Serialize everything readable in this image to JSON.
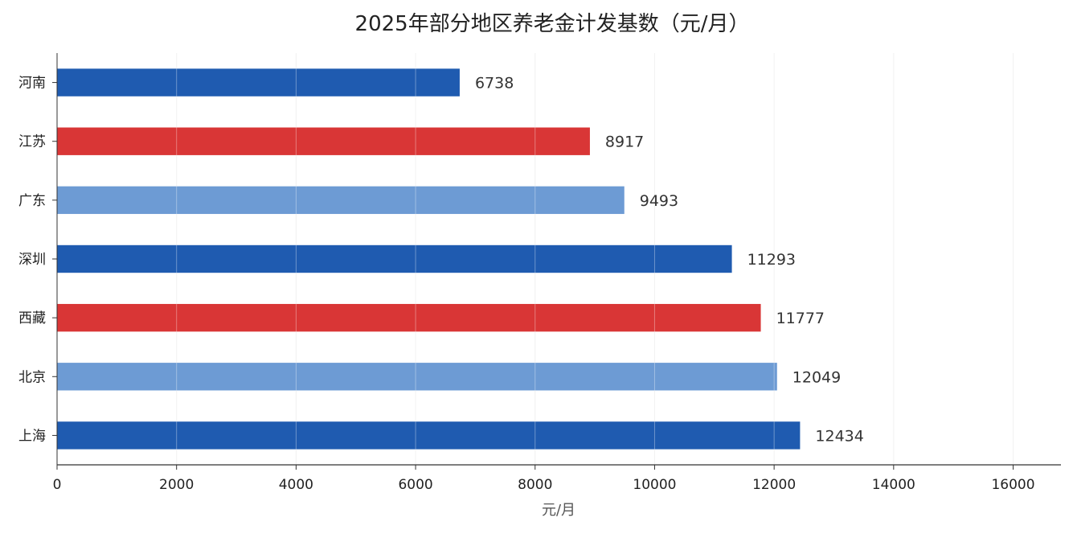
{
  "chart_data": {
    "type": "bar",
    "orientation": "horizontal",
    "title": "2025年部分地区养老金计发基数（元/月）",
    "xlabel": "元/月",
    "ylabel": "",
    "xlim": [
      0,
      16800
    ],
    "x_ticks": [
      0,
      2000,
      4000,
      6000,
      8000,
      10000,
      12000,
      14000,
      16000
    ],
    "grid": "vertical",
    "legend": "none",
    "categories": [
      "河南",
      "江苏",
      "广东",
      "深圳",
      "西藏",
      "北京",
      "上海"
    ],
    "values": [
      6738,
      8917,
      9493,
      11293,
      11777,
      12049,
      12434
    ],
    "bar_colors": [
      "#1f5bb0",
      "#d93636",
      "#6d9bd4",
      "#1f5bb0",
      "#d93636",
      "#6d9bd4",
      "#1f5bb0"
    ],
    "data_labels": [
      "6738",
      "8917",
      "9493",
      "11293",
      "11777",
      "12049",
      "12434"
    ]
  }
}
